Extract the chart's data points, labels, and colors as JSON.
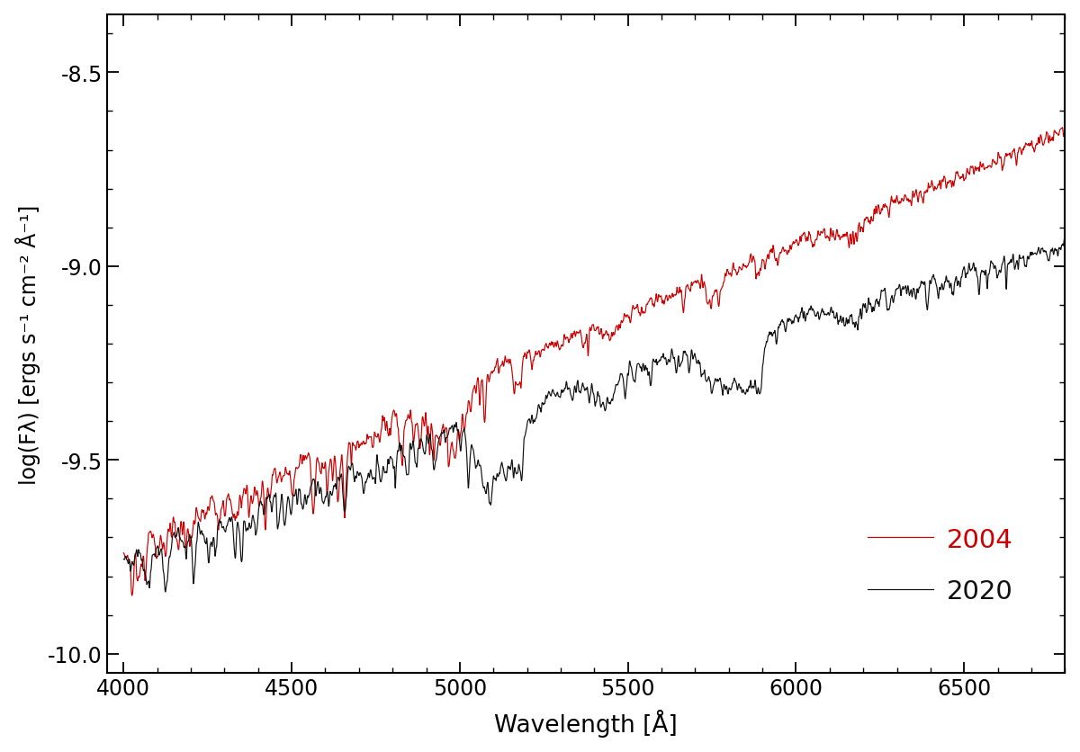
{
  "xlabel": "Wavelength [Å]",
  "ylabel": "log(Fλ) [ergs s⁻¹ cm⁻² Å⁻¹]",
  "xlim": [
    3950,
    6800
  ],
  "ylim": [
    -10.05,
    -8.35
  ],
  "yticks": [
    -10.0,
    -9.5,
    -9.0,
    -8.5
  ],
  "xticks": [
    4000,
    4500,
    5000,
    5500,
    6000,
    6500
  ],
  "color_2004": "#cc0000",
  "color_2020": "#111111",
  "legend_2004": "2004",
  "legend_2020": "2020",
  "background_color": "#ffffff"
}
